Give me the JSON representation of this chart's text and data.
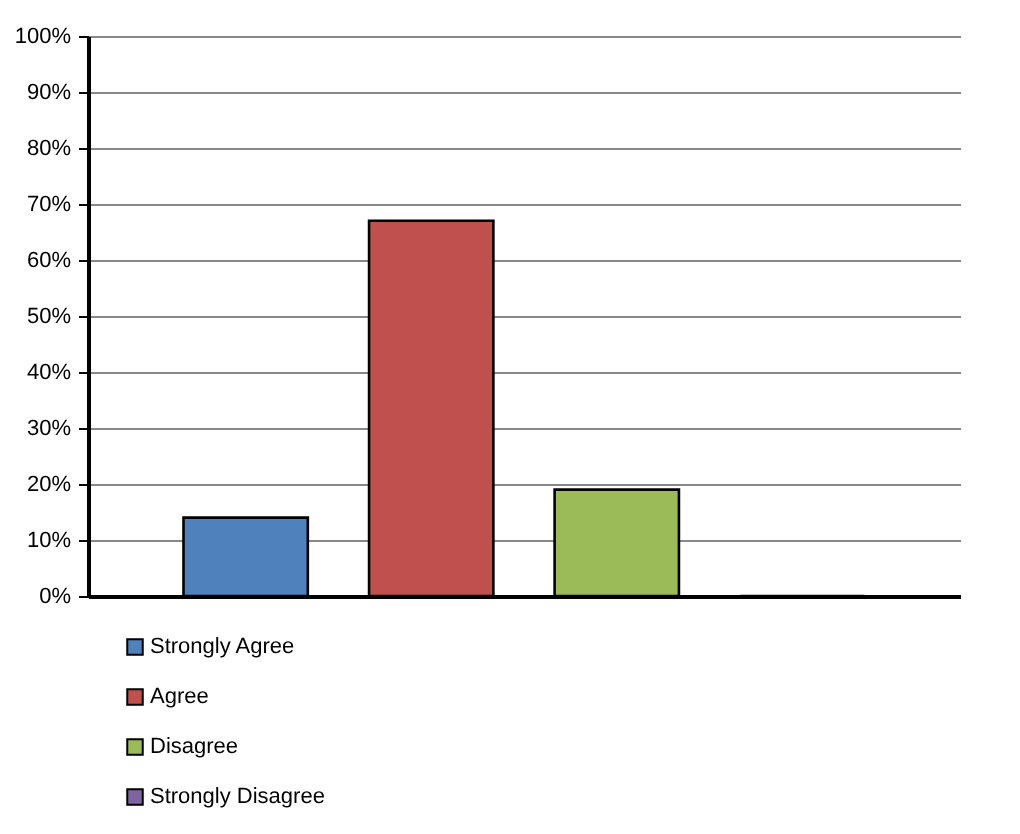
{
  "chart_data": {
    "type": "bar",
    "categories": [
      null
    ],
    "series": [
      {
        "name": "Strongly Agree",
        "color": "#4f81bd",
        "values": [
          14
        ]
      },
      {
        "name": "Agree",
        "color": "#c0504d",
        "values": [
          67
        ]
      },
      {
        "name": "Disagree",
        "color": "#9bbb59",
        "values": [
          19
        ]
      },
      {
        "name": "Strongly Disagree",
        "color": "#8064a2",
        "values": [
          0
        ]
      }
    ],
    "ylim": [
      0,
      100
    ],
    "yticks": [
      {
        "value": 0,
        "label": "0%"
      },
      {
        "value": 10,
        "label": "10%"
      },
      {
        "value": 20,
        "label": "20%"
      },
      {
        "value": 30,
        "label": "30%"
      },
      {
        "value": 40,
        "label": "40%"
      },
      {
        "value": 50,
        "label": "50%"
      },
      {
        "value": 60,
        "label": "60%"
      },
      {
        "value": 70,
        "label": "70%"
      },
      {
        "value": 80,
        "label": "80%"
      },
      {
        "value": 90,
        "label": "90%"
      },
      {
        "value": 100,
        "label": "100%"
      }
    ],
    "grid": "y",
    "legend": "bottom"
  }
}
